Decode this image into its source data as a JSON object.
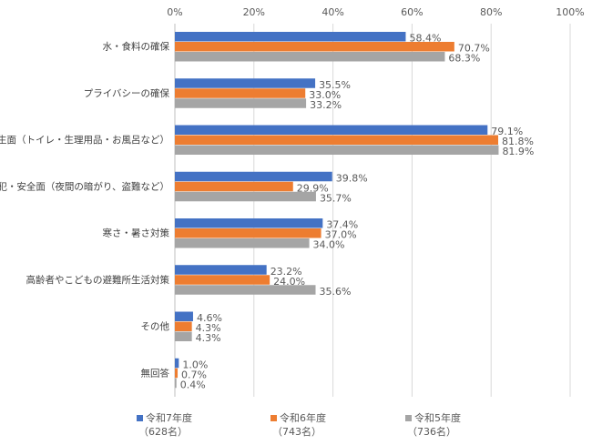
{
  "chart_data": {
    "type": "bar",
    "orientation": "horizontal",
    "categories": [
      "水・食料の確保",
      "プライバシーの確保",
      "衛生面（トイレ・生理用品・お風呂など）",
      "防犯・安全面（夜間の暗がり、盗難など）",
      "寒さ・暑さ対策",
      "高齢者やこどもの避難所生活対策",
      "その他",
      "無回答"
    ],
    "series": [
      {
        "name": "令和7年度",
        "sample": "（628名）",
        "color": "#4472c4",
        "values": [
          58.4,
          35.5,
          79.1,
          39.8,
          37.4,
          23.2,
          4.6,
          1.0
        ],
        "value_labels": [
          "58.4%",
          "35.5%",
          "79.1%",
          "39.8%",
          "37.4%",
          "23.2%",
          "4.6%",
          "1.0%"
        ]
      },
      {
        "name": "令和6年度",
        "sample": "（743名）",
        "color": "#ed7d31",
        "values": [
          70.7,
          33.0,
          81.8,
          29.9,
          37.0,
          24.0,
          4.3,
          0.7
        ],
        "value_labels": [
          "70.7%",
          "33.0%",
          "81.8%",
          "29.9%",
          "37.0%",
          "24.0%",
          "4.3%",
          "0.7%"
        ]
      },
      {
        "name": "令和5年度",
        "sample": "（736名）",
        "color": "#a5a5a5",
        "values": [
          68.3,
          33.2,
          81.9,
          35.7,
          34.0,
          35.6,
          4.3,
          0.4
        ],
        "value_labels": [
          "68.3%",
          "33.2%",
          "81.9%",
          "35.7%",
          "34.0%",
          "35.6%",
          "4.3%",
          "0.4%"
        ]
      }
    ],
    "xlim": [
      0,
      100
    ],
    "xticks": [
      {
        "value": 0,
        "label": "0%"
      },
      {
        "value": 20,
        "label": "20%"
      },
      {
        "value": 40,
        "label": "40%"
      },
      {
        "value": 60,
        "label": "60%"
      },
      {
        "value": 80,
        "label": "80%"
      },
      {
        "value": 100,
        "label": "100%"
      }
    ],
    "grid": true,
    "legend": "bottom"
  }
}
